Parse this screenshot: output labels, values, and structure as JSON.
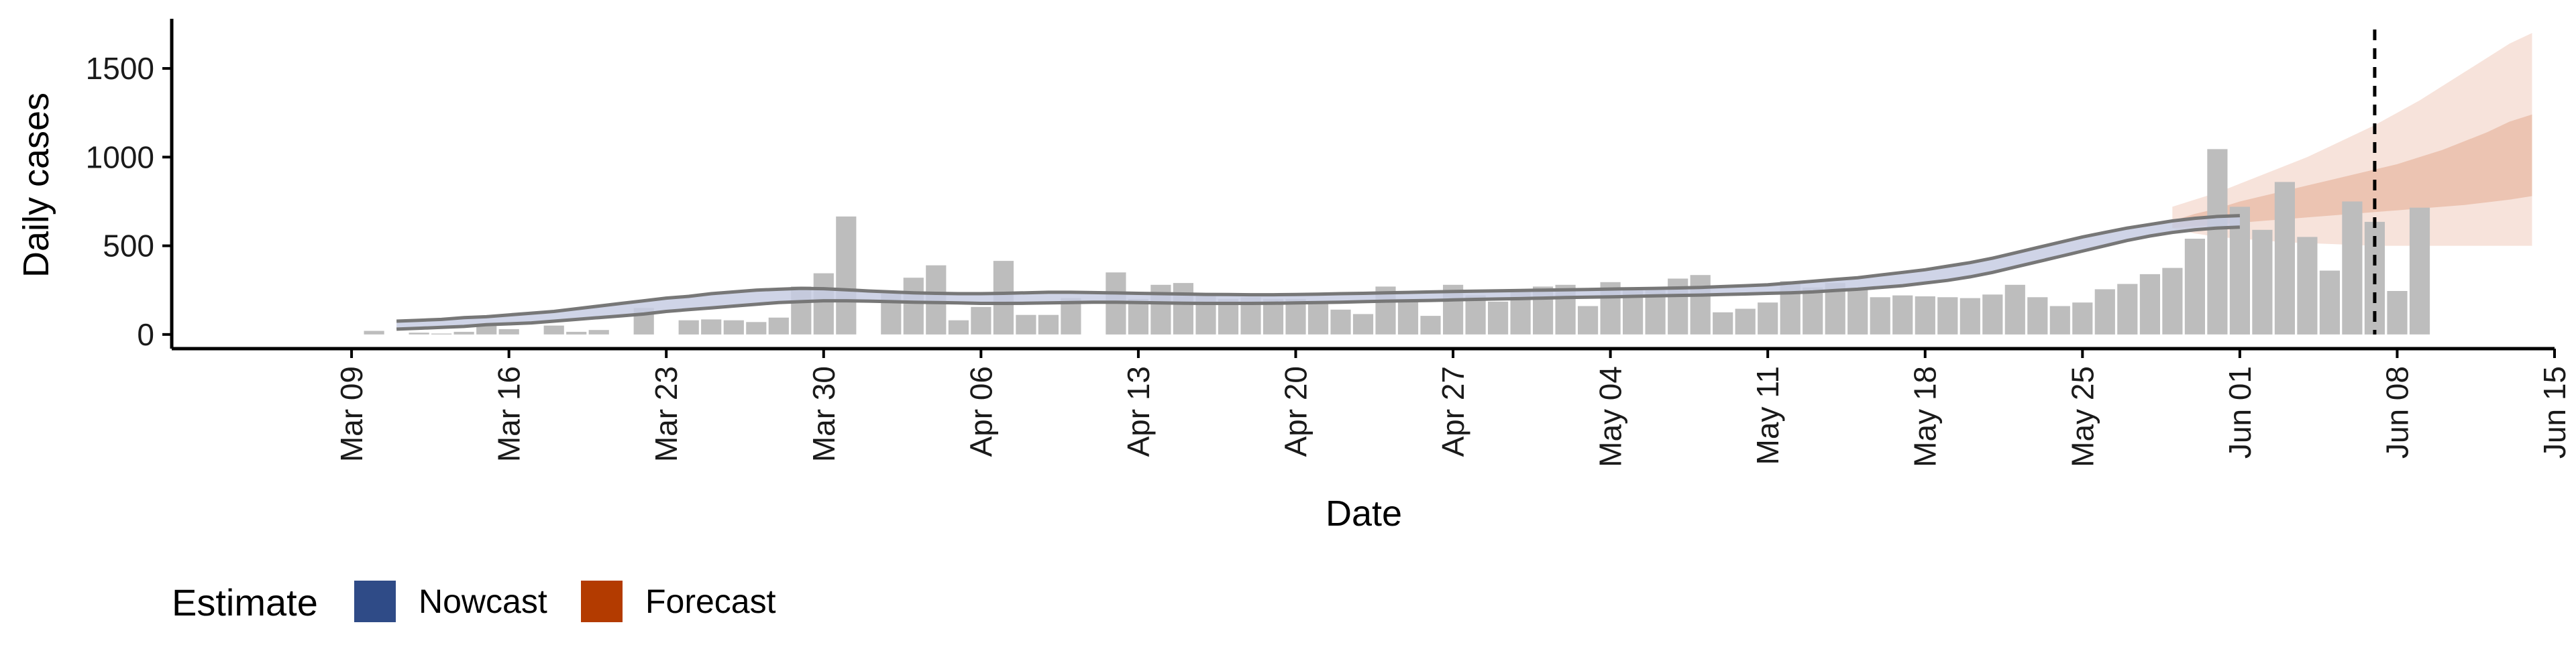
{
  "chart_data": {
    "type": "bar",
    "xlabel": "Date",
    "ylabel": "Daily cases",
    "ylim": [
      -80,
      1780
    ],
    "yticks": [
      0,
      500,
      1000,
      1500
    ],
    "xlim": [
      "2020-03-01",
      "2020-06-15"
    ],
    "xticks": [
      {
        "date": "2020-03-09",
        "label": "Mar 09"
      },
      {
        "date": "2020-03-16",
        "label": "Mar 16"
      },
      {
        "date": "2020-03-23",
        "label": "Mar 23"
      },
      {
        "date": "2020-03-30",
        "label": "Mar 30"
      },
      {
        "date": "2020-04-06",
        "label": "Apr 06"
      },
      {
        "date": "2020-04-13",
        "label": "Apr 13"
      },
      {
        "date": "2020-04-20",
        "label": "Apr 20"
      },
      {
        "date": "2020-04-27",
        "label": "Apr 27"
      },
      {
        "date": "2020-05-04",
        "label": "May 04"
      },
      {
        "date": "2020-05-11",
        "label": "May 11"
      },
      {
        "date": "2020-05-18",
        "label": "May 18"
      },
      {
        "date": "2020-05-25",
        "label": "May 25"
      },
      {
        "date": "2020-06-01",
        "label": "Jun 01"
      },
      {
        "date": "2020-06-08",
        "label": "Jun 08"
      },
      {
        "date": "2020-06-15",
        "label": "Jun 15"
      }
    ],
    "start_date": "2020-03-10",
    "reported_cases": [
      20,
      0,
      10,
      5,
      15,
      50,
      30,
      0,
      50,
      15,
      25,
      0,
      150,
      0,
      80,
      85,
      80,
      70,
      95,
      270,
      345,
      665,
      0,
      230,
      320,
      390,
      80,
      155,
      415,
      110,
      110,
      205,
      0,
      350,
      200,
      280,
      290,
      225,
      200,
      210,
      200,
      200,
      185,
      140,
      115,
      270,
      195,
      105,
      280,
      220,
      185,
      250,
      270,
      280,
      160,
      295,
      250,
      250,
      315,
      335,
      125,
      145,
      180,
      300,
      265,
      290,
      260,
      210,
      220,
      215,
      210,
      205,
      225,
      280,
      210,
      160,
      180,
      255,
      285,
      340,
      375,
      540,
      1045,
      720,
      590,
      860,
      550,
      360,
      750,
      635,
      245,
      715
    ],
    "nowcast_start_date": "2020-03-11",
    "nowcast_upper": [
      75,
      80,
      85,
      95,
      100,
      110,
      120,
      130,
      145,
      160,
      175,
      190,
      205,
      215,
      230,
      240,
      250,
      255,
      260,
      258,
      252,
      245,
      240,
      235,
      232,
      230,
      230,
      232,
      235,
      238,
      238,
      236,
      234,
      232,
      230,
      228,
      226,
      225,
      224,
      224,
      225,
      227,
      230,
      232,
      235,
      237,
      240,
      242,
      244,
      246,
      248,
      250,
      252,
      254,
      256,
      258,
      260,
      262,
      265,
      270,
      275,
      280,
      290,
      300,
      310,
      320,
      335,
      350,
      365,
      385,
      405,
      430,
      460,
      490,
      520,
      550,
      575,
      600,
      620,
      640,
      655,
      665,
      670
    ],
    "nowcast_lower": [
      30,
      35,
      40,
      45,
      55,
      60,
      65,
      75,
      85,
      95,
      105,
      115,
      130,
      140,
      150,
      160,
      170,
      180,
      185,
      190,
      190,
      188,
      185,
      182,
      180,
      178,
      175,
      175,
      176,
      178,
      180,
      182,
      182,
      180,
      178,
      176,
      175,
      175,
      175,
      176,
      178,
      180,
      182,
      185,
      188,
      190,
      192,
      195,
      198,
      200,
      202,
      205,
      208,
      210,
      212,
      215,
      218,
      220,
      222,
      225,
      228,
      232,
      235,
      240,
      248,
      255,
      265,
      275,
      290,
      305,
      325,
      350,
      380,
      410,
      440,
      470,
      500,
      530,
      555,
      575,
      590,
      600,
      605
    ],
    "forecast_start_date": "2020-05-29",
    "forecast_outer_upper": [
      720,
      760,
      800,
      850,
      900,
      950,
      1000,
      1060,
      1120,
      1180,
      1250,
      1320,
      1400,
      1480,
      1560,
      1640,
      1700
    ],
    "forecast_outer_lower": [
      600,
      570,
      550,
      540,
      530,
      520,
      515,
      510,
      505,
      500,
      500,
      500,
      500,
      500,
      500,
      500,
      500
    ],
    "forecast_inner_upper": [
      640,
      680,
      710,
      750,
      780,
      810,
      840,
      870,
      900,
      930,
      960,
      1000,
      1040,
      1090,
      1140,
      1200,
      1240
    ],
    "forecast_inner_lower": [
      600,
      610,
      620,
      630,
      640,
      650,
      660,
      670,
      680,
      690,
      700,
      710,
      720,
      730,
      745,
      760,
      780
    ],
    "vline_date": "2020-06-07",
    "legend": {
      "title": "Estimate",
      "items": [
        {
          "label": "Nowcast",
          "color": "#2f4b87"
        },
        {
          "label": "Forecast",
          "color": "#b33b00"
        }
      ],
      "placement": "bottom-left"
    },
    "colors": {
      "bar": "#bdbdbd",
      "nowcast_band": "#c7cde3",
      "nowcast_line": "#777777",
      "forecast_outer": "#f7e3db",
      "forecast_inner": "#ecc4b2",
      "axis": "#000000",
      "vline": "#000000"
    },
    "grid": false
  }
}
